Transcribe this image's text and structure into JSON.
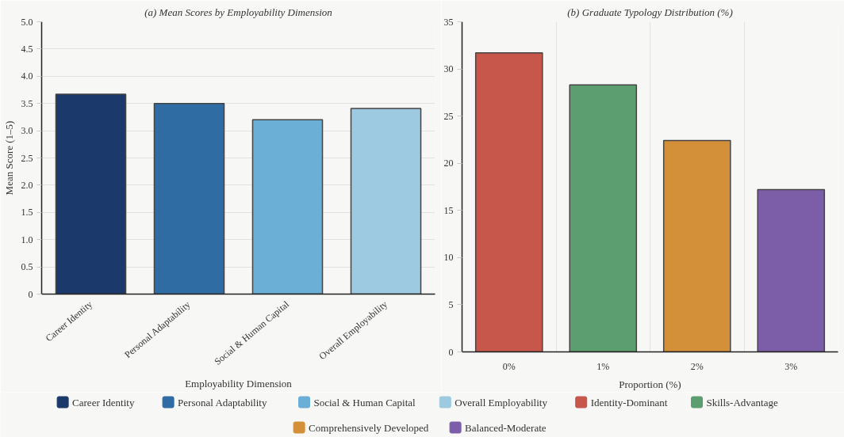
{
  "chart_data": [
    {
      "type": "bar",
      "title": "(a) Mean Scores by Employability Dimension",
      "xlabel": "Employability Dimension",
      "ylabel": "Mean Score (1–5)",
      "categories": [
        "Career Identity",
        "Personal Adaptability",
        "Social & Human Capital",
        "Overall Employability"
      ],
      "stacked": true,
      "series": [
        {
          "name": "Career Identity",
          "color": "#1b3a6b",
          "values": [
            3.67,
            null,
            null,
            null
          ]
        },
        {
          "name": "Personal Adaptability",
          "color": "#2e6ca3",
          "values": [
            null,
            3.5,
            null,
            null
          ]
        },
        {
          "name": "Social & Human Capital",
          "color": "#6baed6",
          "values": [
            null,
            null,
            3.2,
            null
          ]
        },
        {
          "name": "Overall Employability",
          "color": "#9dc9e1",
          "values": [
            null,
            null,
            null,
            3.41
          ]
        }
      ],
      "ylim": [
        0,
        5
      ],
      "yticks": [
        0,
        0.5,
        {
          "value": 1,
          "label": "1.0"
        },
        1.5,
        {
          "value": 2,
          "label": "2.0"
        },
        2.5,
        {
          "value": 3,
          "label": "3.0"
        },
        3.5,
        {
          "value": 4,
          "label": "4.0"
        },
        4.5,
        {
          "value": 5,
          "label": "5.0"
        }
      ],
      "grid": "y",
      "legend": "bottom"
    },
    {
      "type": "bar",
      "title": "(b) Graduate Typology Distribution (%)",
      "xlabel": "Proportion (%)",
      "categories": [
        "0%",
        "1%",
        "2%",
        "3%"
      ],
      "stacked": true,
      "series": [
        {
          "name": "Identity-Dominant",
          "color": "#c7574b",
          "values": [
            31.7,
            null,
            null,
            null
          ]
        },
        {
          "name": "Skills-Advantage",
          "color": "#5c9e6f",
          "values": [
            null,
            28.3,
            null,
            null
          ]
        },
        {
          "name": "Comprehensively Developed",
          "color": "#d39039",
          "values": [
            null,
            null,
            22.4,
            null
          ]
        },
        {
          "name": "Balanced-Moderate",
          "color": "#7c5ea8",
          "values": [
            null,
            null,
            null,
            17.2
          ]
        }
      ],
      "ylim": [
        0,
        35
      ],
      "yticks": [
        0,
        5,
        10,
        15,
        20,
        25,
        30,
        35
      ],
      "grid": "x",
      "legend": "bottom"
    }
  ]
}
